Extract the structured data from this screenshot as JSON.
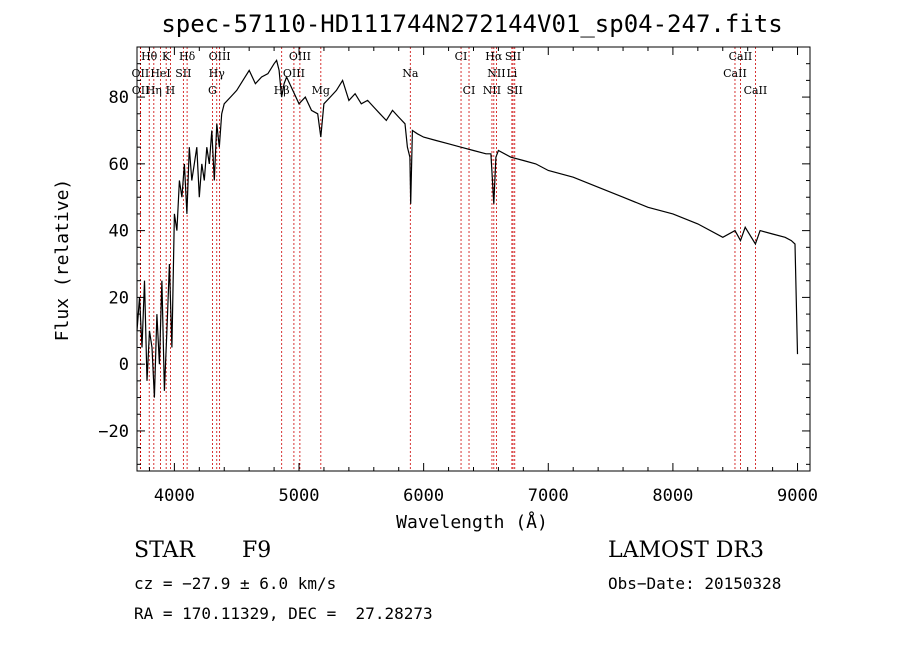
{
  "chart_data": {
    "type": "line",
    "title": "spec-57110-HD111744N272144V01_sp04-247.fits",
    "xlabel": "Wavelength (Å)",
    "ylabel": "Flux (relative)",
    "xlim": [
      3700,
      9100
    ],
    "ylim": [
      -32,
      95
    ],
    "xticks": [
      4000,
      5000,
      6000,
      7000,
      8000,
      9000
    ],
    "yticks": [
      -20,
      0,
      20,
      40,
      60,
      80
    ],
    "series": [
      {
        "name": "flux",
        "x": [
          3700,
          3720,
          3740,
          3760,
          3780,
          3800,
          3820,
          3840,
          3860,
          3880,
          3900,
          3920,
          3940,
          3960,
          3980,
          4000,
          4020,
          4040,
          4060,
          4080,
          4100,
          4120,
          4140,
          4160,
          4180,
          4200,
          4220,
          4240,
          4260,
          4280,
          4300,
          4320,
          4340,
          4360,
          4380,
          4400,
          4450,
          4500,
          4550,
          4600,
          4650,
          4700,
          4750,
          4800,
          4820,
          4840,
          4860,
          4880,
          4900,
          4950,
          5000,
          5050,
          5100,
          5150,
          5175,
          5200,
          5250,
          5300,
          5350,
          5400,
          5450,
          5500,
          5550,
          5600,
          5650,
          5700,
          5750,
          5800,
          5850,
          5870,
          5890,
          5896,
          5910,
          5950,
          6000,
          6100,
          6200,
          6300,
          6400,
          6500,
          6540,
          6563,
          6580,
          6600,
          6700,
          6800,
          6900,
          7000,
          7200,
          7400,
          7600,
          7800,
          8000,
          8200,
          8400,
          8498,
          8542,
          8580,
          8662,
          8700,
          8800,
          8900,
          8950,
          8980,
          9000
        ],
        "y": [
          10,
          20,
          5,
          25,
          -5,
          10,
          5,
          -10,
          15,
          0,
          25,
          -8,
          10,
          30,
          5,
          45,
          40,
          55,
          50,
          60,
          45,
          65,
          55,
          60,
          65,
          50,
          60,
          55,
          65,
          60,
          70,
          55,
          72,
          65,
          75,
          78,
          80,
          82,
          85,
          88,
          84,
          86,
          87,
          90,
          91,
          88,
          80,
          84,
          86,
          82,
          78,
          80,
          76,
          75,
          68,
          78,
          80,
          82,
          85,
          79,
          81,
          78,
          79,
          77,
          75,
          73,
          76,
          74,
          72,
          65,
          62,
          48,
          70,
          69,
          68,
          67,
          66,
          65,
          64,
          63,
          63,
          48,
          62,
          64,
          62,
          61,
          60,
          58,
          56,
          53,
          50,
          47,
          45,
          42,
          38,
          40,
          37,
          41,
          36,
          40,
          39,
          38,
          37,
          36,
          3
        ]
      }
    ],
    "spectral_lines": [
      {
        "label": "Hθ",
        "wl": 3798,
        "row": 0
      },
      {
        "label": "K",
        "wl": 3934,
        "row": 0
      },
      {
        "label": "Hδ",
        "wl": 4102,
        "row": 0
      },
      {
        "label": "OIII",
        "wl": 4363,
        "row": 0
      },
      {
        "label": "OIII",
        "wl": 5007,
        "row": 0
      },
      {
        "label": "CI",
        "wl": 6300,
        "row": 0
      },
      {
        "label": "Hα",
        "wl": 6563,
        "row": 0
      },
      {
        "label": "SII",
        "wl": 6717,
        "row": 0
      },
      {
        "label": "CaII",
        "wl": 8542,
        "row": 0
      },
      {
        "label": "OII",
        "wl": 3727,
        "row": 1
      },
      {
        "label": "HeI",
        "wl": 3889,
        "row": 1
      },
      {
        "label": "SII",
        "wl": 4072,
        "row": 1
      },
      {
        "label": "Hγ",
        "wl": 4340,
        "row": 1
      },
      {
        "label": "OIII",
        "wl": 4959,
        "row": 1
      },
      {
        "label": "Na",
        "wl": 5893,
        "row": 1
      },
      {
        "label": "NII",
        "wl": 6584,
        "row": 1
      },
      {
        "label": "Li",
        "wl": 6708,
        "row": 1
      },
      {
        "label": "CaII",
        "wl": 8498,
        "row": 1
      },
      {
        "label": "OII",
        "wl": 3729,
        "row": 2
      },
      {
        "label": "Hη",
        "wl": 3835,
        "row": 2
      },
      {
        "label": "H",
        "wl": 3968,
        "row": 2
      },
      {
        "label": "G",
        "wl": 4305,
        "row": 2
      },
      {
        "label": "Hβ",
        "wl": 4861,
        "row": 2
      },
      {
        "label": "Mg",
        "wl": 5175,
        "row": 2
      },
      {
        "label": "CI",
        "wl": 6364,
        "row": 2
      },
      {
        "label": "NII",
        "wl": 6548,
        "row": 2
      },
      {
        "label": "SII",
        "wl": 6731,
        "row": 2
      },
      {
        "label": "CaII",
        "wl": 8662,
        "row": 2
      }
    ]
  },
  "info": {
    "object_class": "STAR",
    "subclass": "F9",
    "survey": "LAMOST DR3",
    "cz": "cz = −27.9 ± 6.0 km/s",
    "obs_date": "Obs−Date: 20150328",
    "coords": "RA = 170.11329, DEC =  27.28273"
  },
  "colors": {
    "line_marker": "#cc0000",
    "spectrum": "#000000",
    "axes": "#000000"
  }
}
